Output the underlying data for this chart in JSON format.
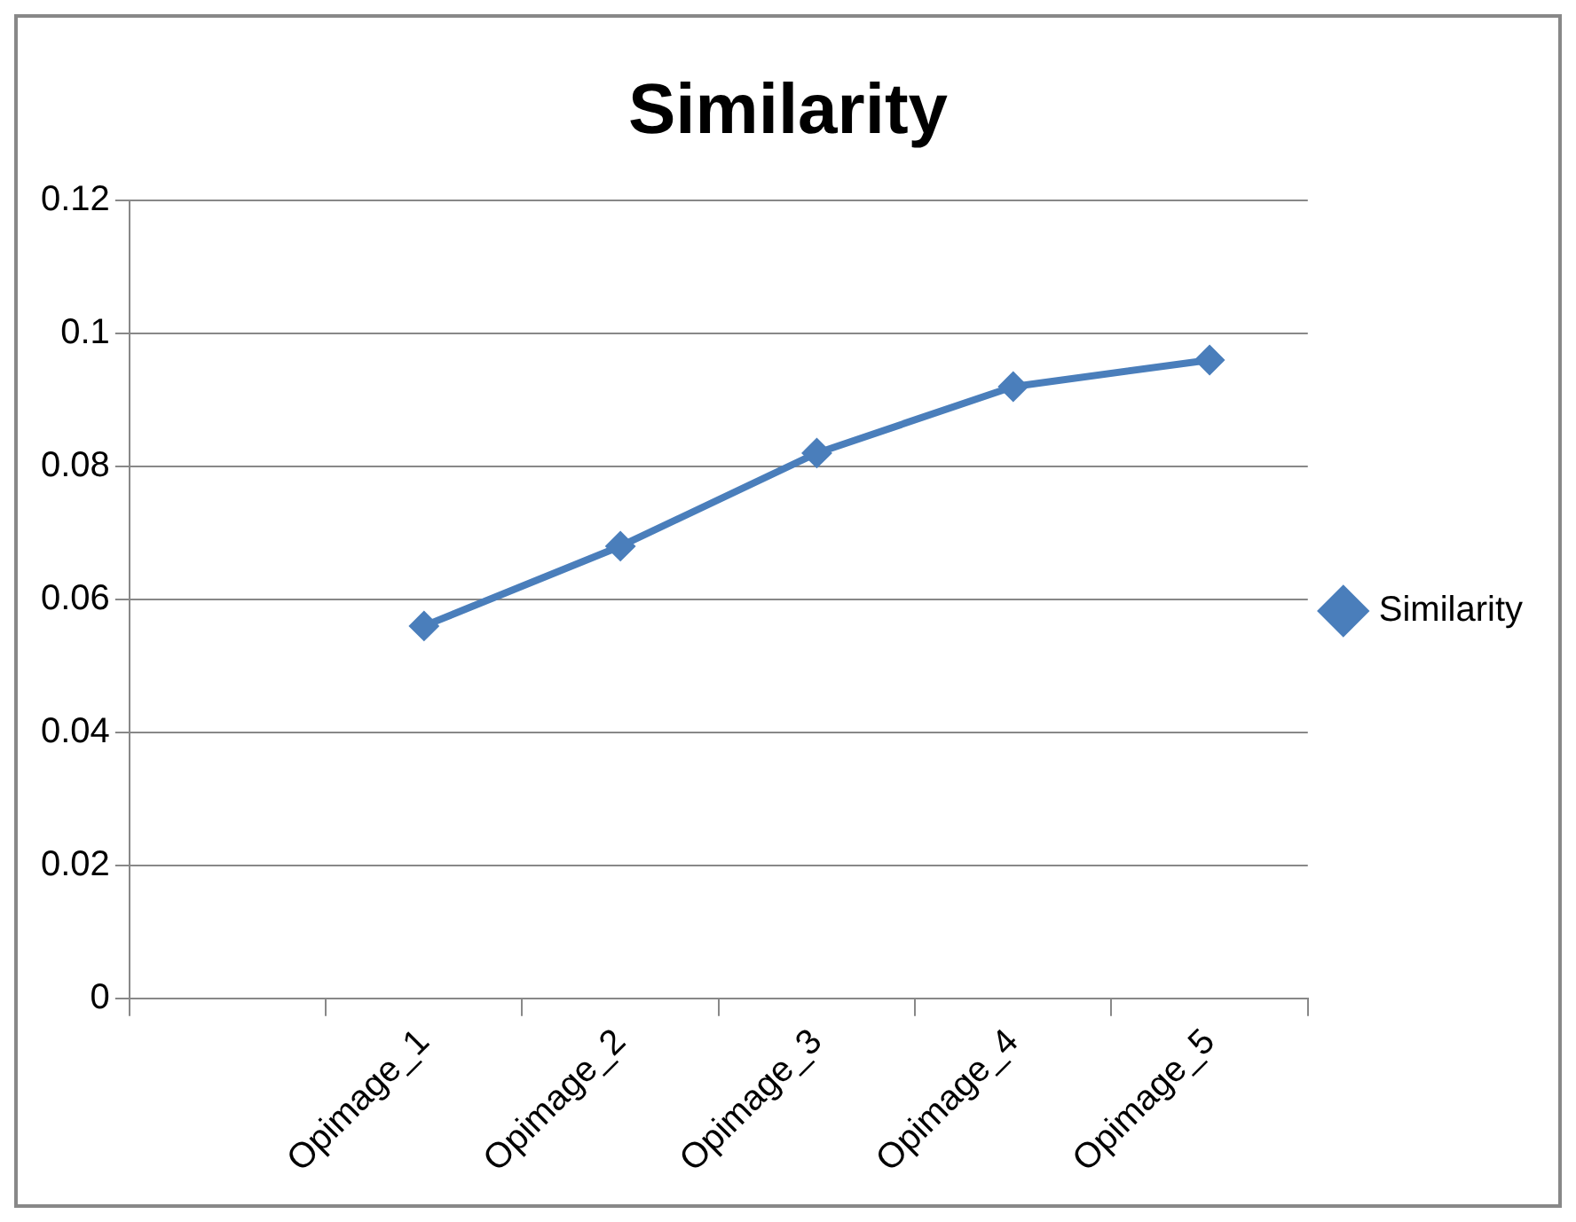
{
  "chart_data": {
    "type": "line",
    "title": "Similarity",
    "categories": [
      null,
      "Opimage_1",
      "Opimage_2",
      "Opimage_3",
      "Opimage_4",
      "Opimage_5"
    ],
    "series": [
      {
        "name": "Similarity",
        "color": "#4a7ebb",
        "values": [
          null,
          0.056,
          0.068,
          0.082,
          0.092,
          0.096
        ]
      }
    ],
    "ylim": [
      0,
      0.12
    ],
    "yticks": [
      0,
      0.02,
      0.04,
      0.06,
      0.08,
      0.1,
      0.12
    ],
    "grid": "y",
    "legend": "right",
    "marker": "diamond",
    "line_style": "solid"
  }
}
